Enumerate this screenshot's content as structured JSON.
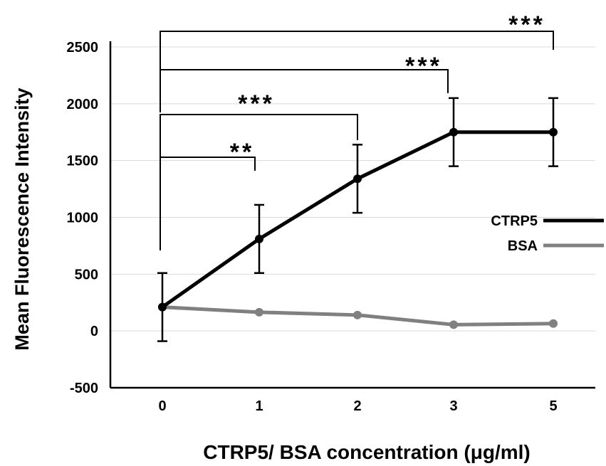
{
  "chart_data": {
    "type": "line",
    "title": "",
    "xlabel": "CTRP5/ BSA concentration (μg/ml)",
    "ylabel": "Mean Fluorescence Intensity",
    "categories": [
      "0",
      "1",
      "2",
      "3",
      "5"
    ],
    "ylim": [
      -500,
      2500
    ],
    "yticks": [
      -500,
      0,
      500,
      1000,
      1500,
      2000,
      2500
    ],
    "ytick_labels": [
      "-500",
      "0",
      "500",
      "1000",
      "1500",
      "2000",
      "2500"
    ],
    "grid": true,
    "legend": "right",
    "series": [
      {
        "name": "CTRP5",
        "values": [
          210,
          810,
          1340,
          1750,
          1750
        ],
        "error": [
          300,
          300,
          300,
          300,
          300
        ],
        "color": "#000000"
      },
      {
        "name": "BSA",
        "values": [
          210,
          165,
          140,
          55,
          65
        ],
        "color": "#808080"
      }
    ],
    "annotations": [
      {
        "from": "0",
        "to": "1",
        "label": "**"
      },
      {
        "from": "0",
        "to": "2",
        "label": "***"
      },
      {
        "from": "0",
        "to": "3",
        "label": "***"
      },
      {
        "from": "0",
        "to": "5",
        "label": "***"
      }
    ]
  }
}
